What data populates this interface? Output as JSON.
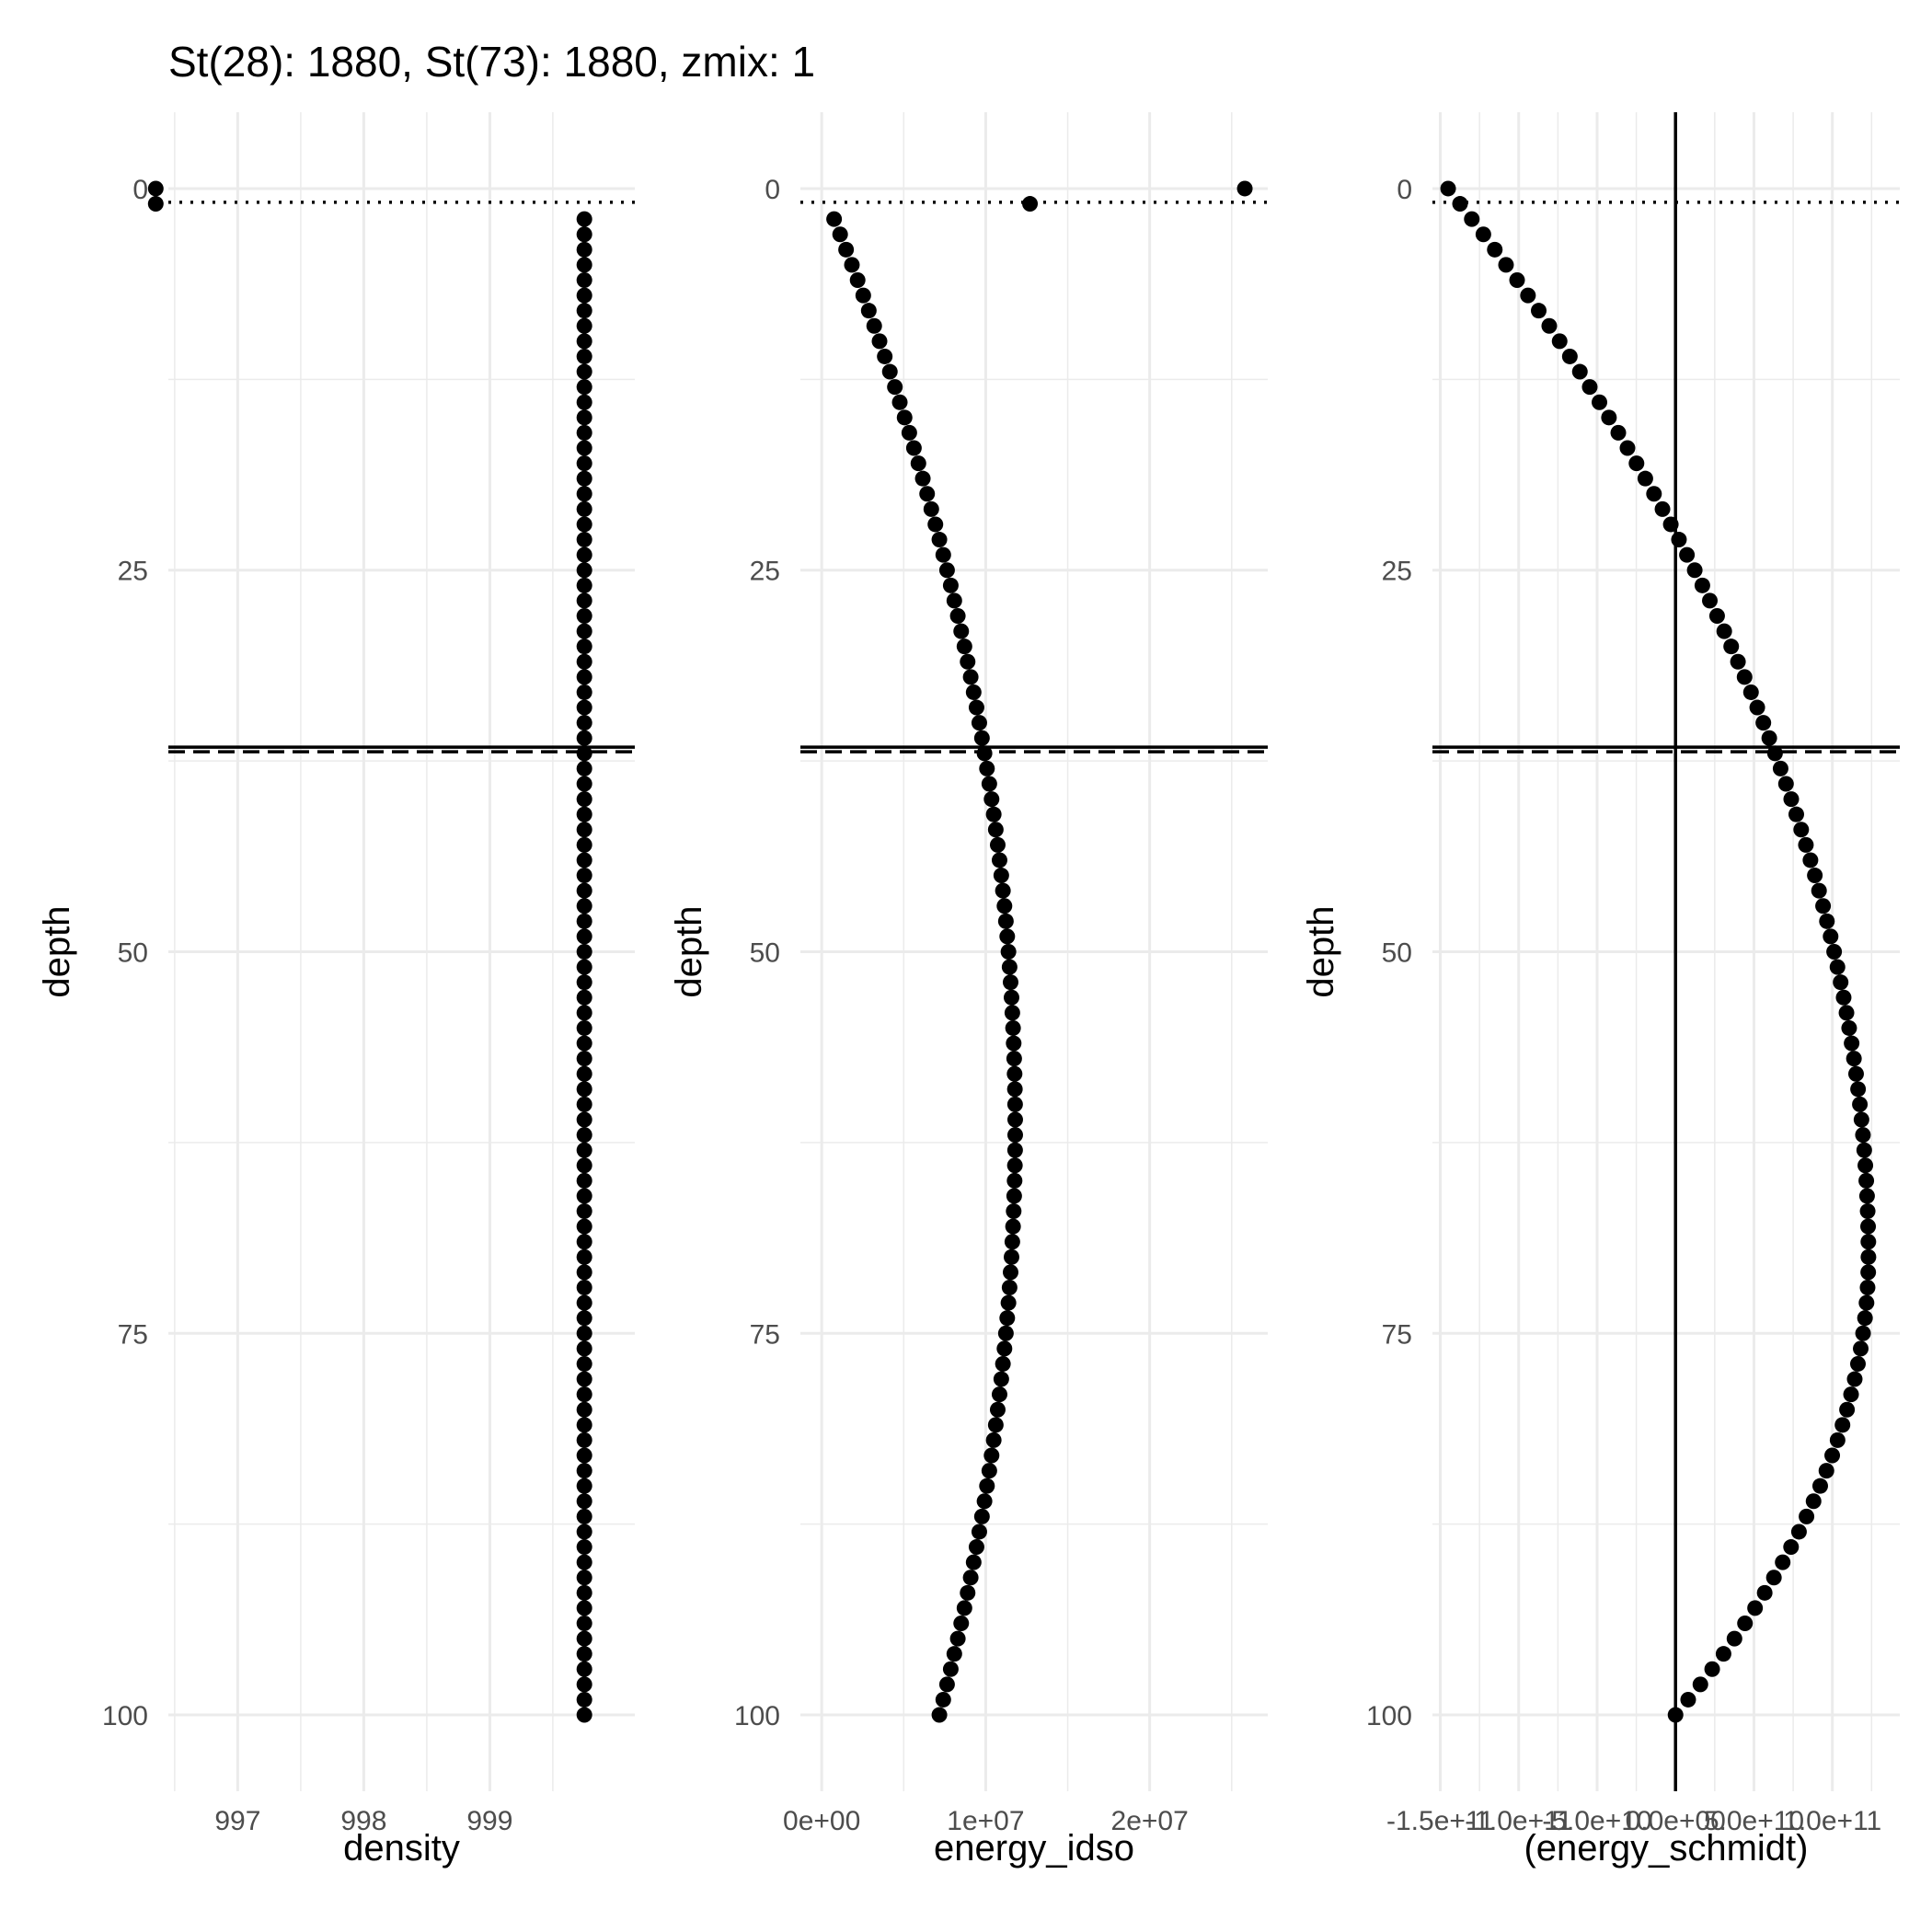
{
  "title": "St(28): 1880, St(73): 1880, zmix: 1",
  "colors": {
    "grid": "#ebebeb",
    "point": "#000000",
    "line": "#000000",
    "tick_text": "#4d4d4d"
  },
  "chart_data": [
    {
      "type": "scatter",
      "xlabel": "density",
      "ylabel": "depth",
      "y_reversed": true,
      "xlim": [
        996.45,
        1000.15
      ],
      "ylim": [
        105,
        -5
      ],
      "x_ticks": [
        997,
        998,
        999
      ],
      "x_tick_labels": [
        "997",
        "998",
        "999"
      ],
      "y_ticks": [
        0,
        25,
        50,
        75,
        100
      ],
      "y_tick_labels": [
        "0",
        "25",
        "50",
        "75",
        "100"
      ],
      "grid": true,
      "reference_lines": {
        "hline_solid": 36.6,
        "hline_dashed": 36.9,
        "hline_dotted": 0.9
      },
      "points": {
        "profile": "constant",
        "x": 999.75
      },
      "surface_points": [
        {
          "x": 996.35,
          "y": 0
        },
        {
          "x": 996.35,
          "y": 1
        }
      ]
    },
    {
      "type": "scatter",
      "xlabel": "energy_idso",
      "ylabel": "depth",
      "y_reversed": true,
      "xlim": [
        -1300000,
        27200000
      ],
      "ylim": [
        105,
        -5
      ],
      "x_ticks": [
        0,
        10000000,
        20000000
      ],
      "x_tick_labels": [
        "0e+00",
        "1e+07",
        "2e+07"
      ],
      "y_ticks": [
        0,
        25,
        50,
        75,
        100
      ],
      "y_tick_labels": [
        "0",
        "25",
        "50",
        "75",
        "100"
      ],
      "grid": true,
      "reference_lines": {
        "hline_solid": 36.6,
        "hline_dashed": 36.9,
        "hline_dotted": 0.9
      },
      "points": {
        "profile": "idso",
        "peak_x": 11800000,
        "peak_depth": 61.5
      },
      "surface_points": [
        {
          "x": 25800000,
          "y": 0
        },
        {
          "x": 12700000,
          "y": 1
        }
      ]
    },
    {
      "type": "scatter",
      "xlabel": "(energy_schmidt)",
      "ylabel": "depth",
      "y_reversed": true,
      "xlim": [
        -155000000000,
        143000000000
      ],
      "ylim": [
        105,
        -5
      ],
      "x_ticks": [
        -150000000000,
        -100000000000,
        -50000000000,
        0,
        50000000000,
        100000000000
      ],
      "x_tick_labels": [
        "-1.5e+11",
        "-1.0e+11",
        "-5.0e+10",
        "0.0e+00",
        "5.0e+10",
        "1.0e+11"
      ],
      "y_ticks": [
        0,
        25,
        50,
        75,
        100
      ],
      "y_tick_labels": [
        "0",
        "25",
        "50",
        "75",
        "100"
      ],
      "grid": true,
      "reference_lines": {
        "hline_solid": 36.6,
        "hline_dashed": 36.9,
        "hline_dotted": 0.9,
        "vline_solid": 0
      },
      "points": {
        "profile": "schmidt",
        "x_at_surface": -145000000000,
        "peak_x": 123000000000,
        "peak_depth": 70
      }
    }
  ]
}
